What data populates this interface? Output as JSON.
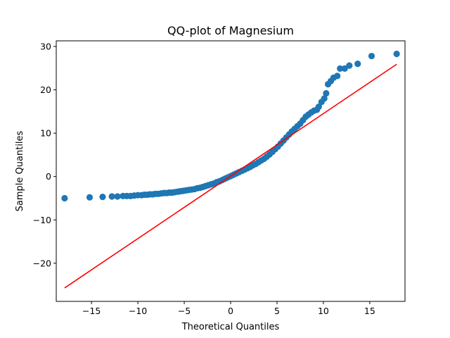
{
  "chart_data": {
    "type": "scatter",
    "title": "QQ-plot of Magnesium",
    "xlabel": "Theoretical Quantiles",
    "ylabel": "Sample Quantiles",
    "xlim": [
      -18.8,
      18.8
    ],
    "ylim": [
      -28.8,
      31.3
    ],
    "xticks": [
      -15,
      -10,
      -5,
      0,
      5,
      10,
      15
    ],
    "yticks": [
      -20,
      -10,
      0,
      10,
      20,
      30
    ],
    "xtick_labels": [
      "−15",
      "−10",
      "−5",
      "0",
      "5",
      "10",
      "15"
    ],
    "ytick_labels": [
      "−20",
      "−10",
      "0",
      "10",
      "20",
      "30"
    ],
    "grid": false,
    "legend": "none",
    "series": [
      {
        "kind": "points",
        "color": "#1f77b4",
        "points": [
          [
            -17.9,
            -5.0
          ],
          [
            -15.2,
            -4.8
          ],
          [
            -13.8,
            -4.7
          ],
          [
            -12.8,
            -4.6
          ],
          [
            -12.2,
            -4.6
          ],
          [
            -11.6,
            -4.5
          ],
          [
            -11.2,
            -4.5
          ],
          [
            -10.8,
            -4.5
          ],
          [
            -10.4,
            -4.4
          ],
          [
            -10.0,
            -4.3
          ],
          [
            -9.6,
            -4.3
          ],
          [
            -9.3,
            -4.2
          ],
          [
            -9.0,
            -4.2
          ],
          [
            -8.7,
            -4.1
          ],
          [
            -8.4,
            -4.1
          ],
          [
            -8.1,
            -4.0
          ],
          [
            -7.8,
            -4.0
          ],
          [
            -7.5,
            -3.9
          ],
          [
            -7.2,
            -3.8
          ],
          [
            -6.9,
            -3.8
          ],
          [
            -6.6,
            -3.7
          ],
          [
            -6.3,
            -3.7
          ],
          [
            -6.0,
            -3.6
          ],
          [
            -5.7,
            -3.5
          ],
          [
            -5.4,
            -3.4
          ],
          [
            -5.1,
            -3.3
          ],
          [
            -4.8,
            -3.2
          ],
          [
            -4.5,
            -3.1
          ],
          [
            -4.2,
            -3.0
          ],
          [
            -3.9,
            -2.9
          ],
          [
            -3.6,
            -2.7
          ],
          [
            -3.3,
            -2.6
          ],
          [
            -3.0,
            -2.4
          ],
          [
            -2.7,
            -2.2
          ],
          [
            -2.4,
            -2.0
          ],
          [
            -2.1,
            -1.8
          ],
          [
            -1.8,
            -1.6
          ],
          [
            -1.5,
            -1.3
          ],
          [
            -1.2,
            -1.1
          ],
          [
            -0.9,
            -0.8
          ],
          [
            -0.6,
            -0.5
          ],
          [
            -0.3,
            -0.2
          ],
          [
            0.0,
            0.1
          ],
          [
            0.3,
            0.4
          ],
          [
            0.6,
            0.7
          ],
          [
            0.9,
            1.0
          ],
          [
            1.2,
            1.3
          ],
          [
            1.5,
            1.6
          ],
          [
            1.8,
            1.9
          ],
          [
            2.1,
            2.2
          ],
          [
            2.4,
            2.6
          ],
          [
            2.7,
            2.9
          ],
          [
            3.0,
            3.3
          ],
          [
            3.3,
            3.7
          ],
          [
            3.6,
            4.1
          ],
          [
            3.9,
            4.6
          ],
          [
            4.2,
            5.1
          ],
          [
            4.5,
            5.7
          ],
          [
            4.8,
            6.3
          ],
          [
            5.1,
            6.9
          ],
          [
            5.4,
            7.6
          ],
          [
            5.7,
            8.3
          ],
          [
            6.0,
            9.0
          ],
          [
            6.3,
            9.7
          ],
          [
            6.6,
            10.4
          ],
          [
            6.9,
            11.0
          ],
          [
            7.2,
            11.6
          ],
          [
            7.5,
            12.2
          ],
          [
            7.8,
            13.0
          ],
          [
            8.1,
            13.8
          ],
          [
            8.4,
            14.3
          ],
          [
            8.7,
            14.8
          ],
          [
            9.0,
            15.2
          ],
          [
            9.3,
            15.4
          ],
          [
            9.5,
            16.1
          ],
          [
            9.8,
            17.2
          ],
          [
            10.1,
            18.0
          ],
          [
            10.3,
            19.2
          ],
          [
            10.5,
            21.3
          ],
          [
            10.8,
            22.0
          ],
          [
            11.1,
            22.8
          ],
          [
            11.5,
            23.2
          ],
          [
            11.8,
            24.9
          ],
          [
            12.3,
            24.9
          ],
          [
            12.8,
            25.6
          ],
          [
            13.7,
            26.0
          ],
          [
            15.2,
            27.8
          ],
          [
            17.9,
            28.3
          ]
        ]
      },
      {
        "kind": "line",
        "color": "#ff0000",
        "points": [
          [
            -17.9,
            -25.7
          ],
          [
            17.9,
            25.9
          ]
        ]
      }
    ]
  }
}
